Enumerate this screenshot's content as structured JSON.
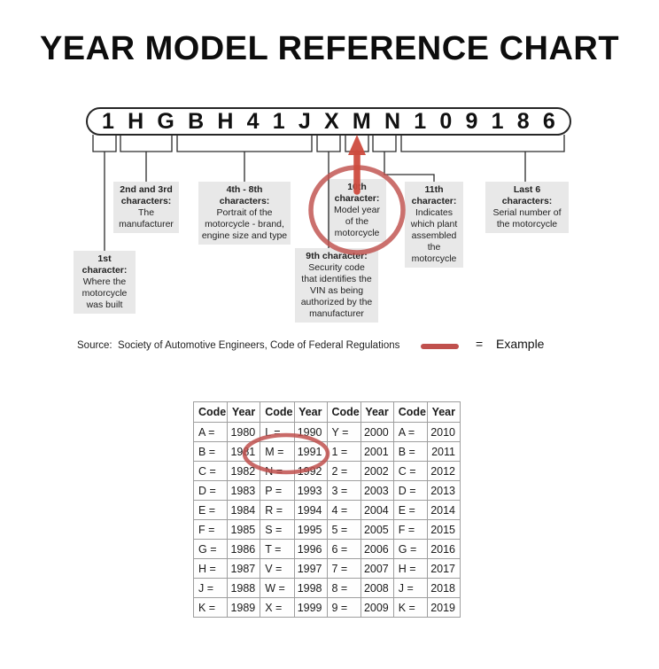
{
  "title": "YEAR MODEL REFERENCE CHART",
  "vin_characters": [
    "1",
    "H",
    "G",
    "B",
    "H",
    "4",
    "1",
    "J",
    "X",
    "M",
    "N",
    "1",
    "0",
    "9",
    "1",
    "8",
    "6"
  ],
  "callouts": {
    "first": {
      "heading": "1st\ncharacter:",
      "body": "Where the\nmotorcycle\nwas built"
    },
    "second_third": {
      "heading": "2nd and 3rd\ncharacters:",
      "body": "The\nmanufacturer"
    },
    "fourth_eighth": {
      "heading": "4th - 8th\ncharacters:",
      "body": "Portrait of the\nmotorcycle - brand,\nengine size and type"
    },
    "ninth": {
      "heading": "9th character:",
      "body": "Security code\nthat identifies the\nVIN as being\nauthorized by the\nmanufacturer"
    },
    "tenth": {
      "heading": "10th\ncharacter:",
      "body": "Model year\nof the\nmotorcycle"
    },
    "eleventh": {
      "heading": "11th\ncharacter:",
      "body": "Indicates\nwhich plant\nassembled\nthe\nmotorcycle"
    },
    "last_six": {
      "heading": "Last 6\ncharacters:",
      "body": "Serial number of\nthe motorcycle"
    }
  },
  "source": {
    "text": "Source:  Society of Automotive Engineers, Code of Federal Regulations"
  },
  "legend": {
    "equals": "=",
    "label": "Example"
  },
  "annotations": {
    "circled_callout": "10th character: Model year of the motorcycle",
    "circled_table_entry": "M = 1991",
    "arrow_points_to": "M"
  },
  "chart_data": {
    "type": "table",
    "columns": [
      "Code",
      "Year",
      "Code",
      "Year",
      "Code",
      "Year",
      "Code",
      "Year"
    ],
    "rows": [
      [
        "A =",
        "1980",
        "L =",
        "1990",
        "Y =",
        "2000",
        "A =",
        "2010"
      ],
      [
        "B =",
        "1981",
        "M =",
        "1991",
        "1 =",
        "2001",
        "B =",
        "2011"
      ],
      [
        "C =",
        "1982",
        "N =",
        "1992",
        "2 =",
        "2002",
        "C =",
        "2012"
      ],
      [
        "D =",
        "1983",
        "P =",
        "1993",
        "3 =",
        "2003",
        "D =",
        "2013"
      ],
      [
        "E =",
        "1984",
        "R =",
        "1994",
        "4 =",
        "2004",
        "E =",
        "2014"
      ],
      [
        "F =",
        "1985",
        "S =",
        "1995",
        "5 =",
        "2005",
        "F =",
        "2015"
      ],
      [
        "G =",
        "1986",
        "T =",
        "1996",
        "6 =",
        "2006",
        "G =",
        "2016"
      ],
      [
        "H =",
        "1987",
        "V =",
        "1997",
        "7 =",
        "2007",
        "H =",
        "2017"
      ],
      [
        "J =",
        "1988",
        "W =",
        "1998",
        "8 =",
        "2008",
        "J =",
        "2018"
      ],
      [
        "K =",
        "1989",
        "X =",
        "1999",
        "9 =",
        "2009",
        "K =",
        "2019"
      ]
    ]
  },
  "colors": {
    "line_dark": "#2b2b2b",
    "accent_red": "#c0504d",
    "arrow_red": "#cd4b3e",
    "box_gray": "#e8e8e8",
    "table_grid": "#9e9e9e"
  }
}
